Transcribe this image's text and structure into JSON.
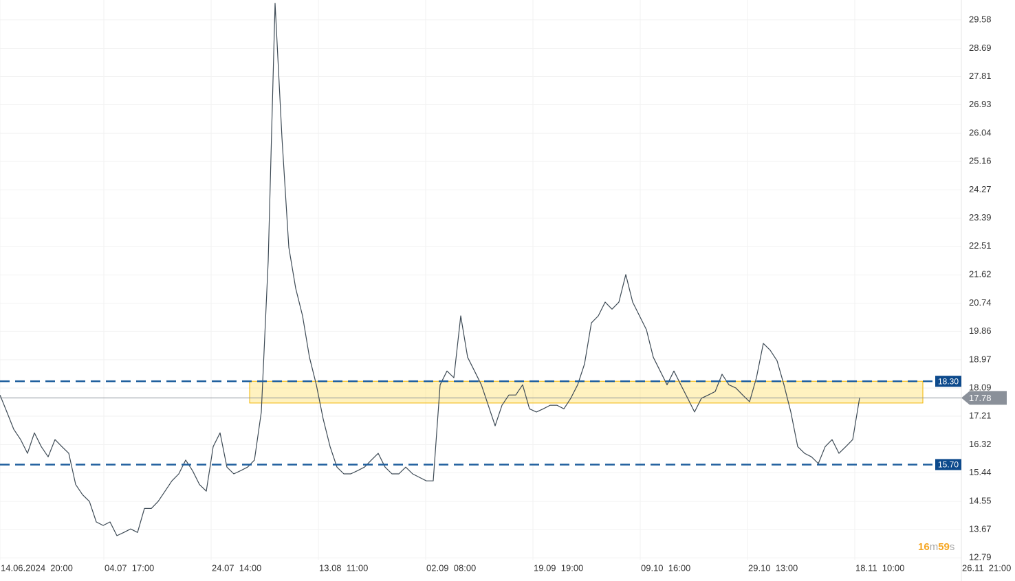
{
  "chart_data": {
    "type": "line",
    "color": "#3d4a55",
    "values": [
      17.87,
      17.34,
      16.8,
      16.48,
      16.05,
      16.69,
      16.26,
      15.94,
      16.48,
      16.26,
      16.05,
      15.08,
      14.76,
      14.55,
      13.91,
      13.8,
      13.91,
      13.48,
      13.58,
      13.69,
      13.58,
      14.33,
      14.33,
      14.55,
      14.87,
      15.19,
      15.41,
      15.84,
      15.51,
      15.08,
      14.87,
      16.26,
      16.69,
      15.62,
      15.41,
      15.51,
      15.62,
      15.84,
      17.34,
      22.05,
      30.1,
      25.91,
      22.48,
      21.2,
      20.34,
      19.05,
      18.19,
      17.12,
      16.26,
      15.62,
      15.41,
      15.41,
      15.51,
      15.62,
      15.84,
      16.05,
      15.62,
      15.41,
      15.41,
      15.62,
      15.41,
      15.3,
      15.19,
      15.19,
      18.19,
      18.62,
      18.41,
      20.34,
      19.05,
      18.62,
      18.19,
      17.55,
      16.91,
      17.55,
      17.87,
      17.87,
      18.19,
      17.44,
      17.34,
      17.44,
      17.55,
      17.55,
      17.44,
      17.77,
      18.19,
      18.84,
      20.12,
      20.34,
      20.77,
      20.55,
      20.77,
      21.63,
      20.77,
      20.34,
      19.91,
      19.05,
      18.62,
      18.19,
      18.62,
      18.19,
      17.77,
      17.34,
      17.77,
      17.87,
      17.98,
      18.52,
      18.19,
      18.09,
      17.87,
      17.66,
      18.41,
      19.48,
      19.27,
      18.94,
      18.19,
      17.34,
      16.26,
      16.05,
      15.94,
      15.73,
      16.26,
      16.48,
      16.05,
      16.26,
      16.48,
      17.78
    ],
    "xlim": [
      0,
      139.8
    ],
    "xticks": [
      {
        "value": 0,
        "label": "14.06.2024  20:00"
      },
      {
        "value": 15.1,
        "label": "04.07  17:00"
      },
      {
        "value": 30.7,
        "label": "24.07  14:00"
      },
      {
        "value": 46.3,
        "label": "13.08  11:00"
      },
      {
        "value": 61.9,
        "label": "02.09  08:00"
      },
      {
        "value": 77.5,
        "label": "19.09  19:00"
      },
      {
        "value": 93.1,
        "label": "09.10  16:00"
      },
      {
        "value": 108.7,
        "label": "29.10  13:00"
      },
      {
        "value": 124.3,
        "label": "18.11  10:00"
      },
      {
        "value": 139.8,
        "label": "26.11  21:00"
      }
    ],
    "ylim": [
      12.73,
      30.2
    ],
    "yticks": [
      29.58,
      28.69,
      27.81,
      26.93,
      26.04,
      25.16,
      24.27,
      23.39,
      22.51,
      21.62,
      20.74,
      19.86,
      18.97,
      18.09,
      17.21,
      16.32,
      15.44,
      14.55,
      13.67,
      12.79
    ],
    "grid": true,
    "levels": [
      {
        "value": 18.3,
        "label": "18.30"
      },
      {
        "value": 15.7,
        "label": "15.70"
      }
    ],
    "last_price": 17.78,
    "zone": {
      "x": [
        36.3,
        134.2
      ],
      "y": [
        17.62,
        18.3
      ]
    },
    "countdown": [
      "16",
      "m",
      "59",
      "s"
    ]
  }
}
